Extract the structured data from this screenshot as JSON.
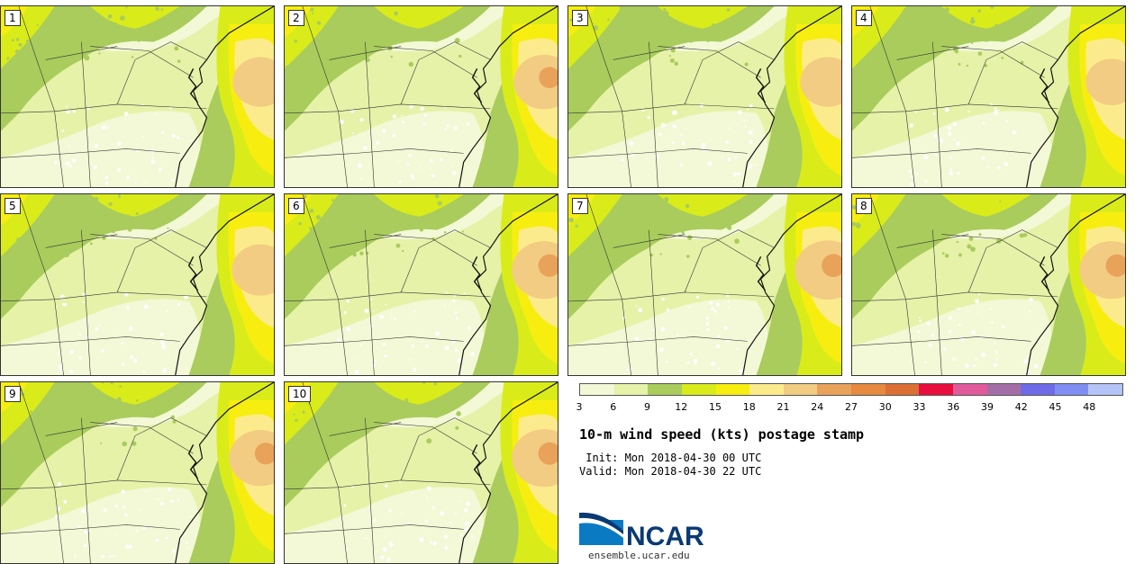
{
  "panels": [
    {
      "label": "1",
      "intensity": 0.55
    },
    {
      "label": "2",
      "intensity": 0.7
    },
    {
      "label": "3",
      "intensity": 0.55
    },
    {
      "label": "4",
      "intensity": 0.45
    },
    {
      "label": "5",
      "intensity": 0.6
    },
    {
      "label": "6",
      "intensity": 0.8
    },
    {
      "label": "7",
      "intensity": 0.85
    },
    {
      "label": "8",
      "intensity": 0.8
    },
    {
      "label": "9",
      "intensity": 0.75
    },
    {
      "label": "10",
      "intensity": 0.8
    }
  ],
  "colorbar": {
    "colors": [
      "#f3f8d6",
      "#e5f2a8",
      "#a9cc5c",
      "#d9ec1a",
      "#f7ee10",
      "#fceb8c",
      "#f2cc82",
      "#e9a25a",
      "#e58a3e",
      "#db6f34",
      "#e80e3e",
      "#e05a9c",
      "#a36ea8",
      "#6f6be8",
      "#7f8ef2",
      "#b4c4f6"
    ],
    "ticks": [
      "3",
      "6",
      "9",
      "12",
      "15",
      "18",
      "21",
      "24",
      "27",
      "30",
      "33",
      "36",
      "39",
      "42",
      "45",
      "48"
    ]
  },
  "title": "10-m wind speed (kts) postage stamp",
  "init": " Init: Mon 2018-04-30 00 UTC",
  "valid": "Valid: Mon 2018-04-30 22 UTC",
  "logo": {
    "text": "NCAR",
    "url": "ensemble.ucar.edu",
    "color": "#0a3a73"
  }
}
